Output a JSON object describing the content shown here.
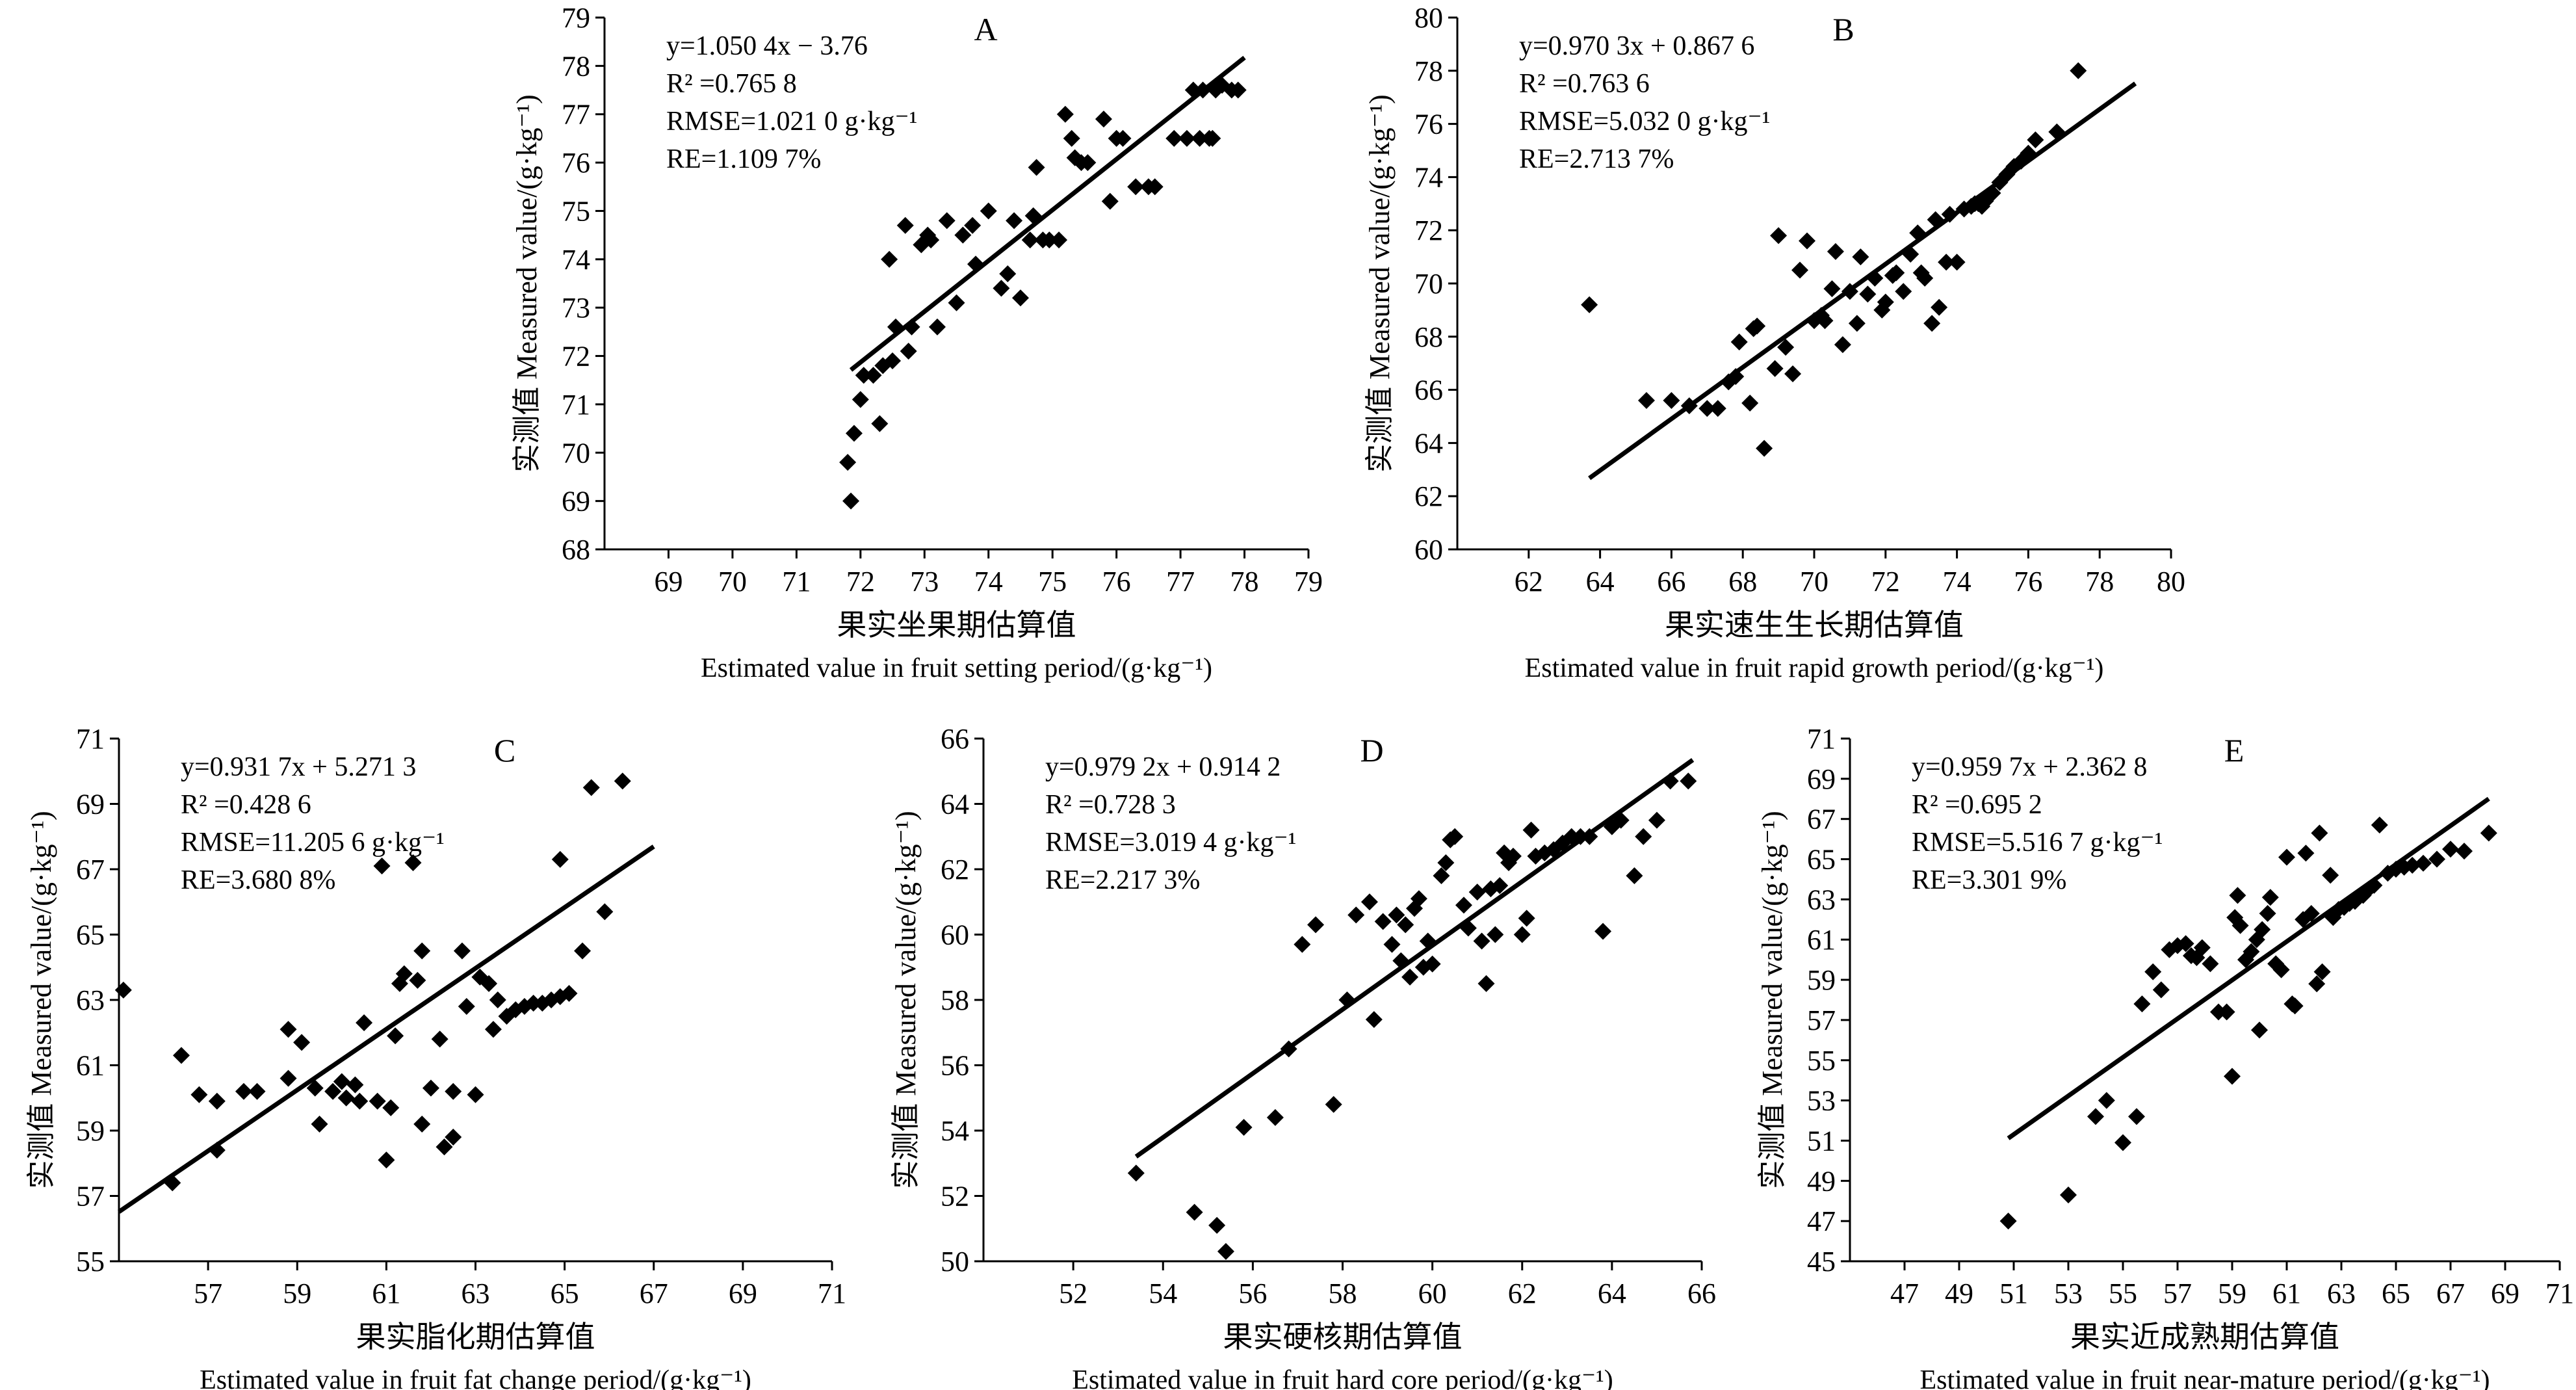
{
  "figure": {
    "panels": [
      "A",
      "B",
      "C",
      "D",
      "E"
    ]
  },
  "chart_data": [
    {
      "type": "scatter",
      "letter": "A",
      "xlabel_cn": "果实坐果期估算值",
      "xlabel_en": "Estimated value in fruit setting period/(g·kg⁻¹)",
      "ylabel": "实测值 Measured value/(g·kg⁻¹)",
      "xlim": [
        68,
        79
      ],
      "ylim": [
        68,
        79
      ],
      "xticks": [
        "69",
        "70",
        "71",
        "72",
        "73",
        "74",
        "75",
        "76",
        "77",
        "78",
        "79"
      ],
      "yticks": [
        "68",
        "69",
        "70",
        "71",
        "72",
        "73",
        "74",
        "75",
        "76",
        "77",
        "78",
        "79"
      ],
      "equation": "y=1.050 4x − 3.76",
      "r2": "R² =0.765 8",
      "rmse": "RMSE=1.021 0 g·kg⁻¹",
      "re": "RE=1.109 7%",
      "fit": {
        "slope": 1.0504,
        "intercept": -3.76,
        "x": [
          71.85,
          78.0
        ]
      },
      "points": [
        [
          71.8,
          69.8
        ],
        [
          71.85,
          69.0
        ],
        [
          71.9,
          70.4
        ],
        [
          72.0,
          71.1
        ],
        [
          72.05,
          71.6
        ],
        [
          72.2,
          71.6
        ],
        [
          72.35,
          71.8
        ],
        [
          72.5,
          71.9
        ],
        [
          72.3,
          70.6
        ],
        [
          72.45,
          74.0
        ],
        [
          72.55,
          72.6
        ],
        [
          72.7,
          74.7
        ],
        [
          72.8,
          72.6
        ],
        [
          72.75,
          72.1
        ],
        [
          72.95,
          74.3
        ],
        [
          73.05,
          74.5
        ],
        [
          73.1,
          74.4
        ],
        [
          73.2,
          72.6
        ],
        [
          73.35,
          74.8
        ],
        [
          73.5,
          73.1
        ],
        [
          73.6,
          74.5
        ],
        [
          73.75,
          74.7
        ],
        [
          73.8,
          73.9
        ],
        [
          74.0,
          75.0
        ],
        [
          74.2,
          73.4
        ],
        [
          74.3,
          73.7
        ],
        [
          74.4,
          74.8
        ],
        [
          74.5,
          73.2
        ],
        [
          74.65,
          74.4
        ],
        [
          74.7,
          74.9
        ],
        [
          74.75,
          75.9
        ],
        [
          74.85,
          74.4
        ],
        [
          74.95,
          74.4
        ],
        [
          75.1,
          74.4
        ],
        [
          75.2,
          77.0
        ],
        [
          75.3,
          76.5
        ],
        [
          75.35,
          76.1
        ],
        [
          75.45,
          76.0
        ],
        [
          75.55,
          76.0
        ],
        [
          75.8,
          76.9
        ],
        [
          75.9,
          75.2
        ],
        [
          76.0,
          76.5
        ],
        [
          76.1,
          76.5
        ],
        [
          76.3,
          75.5
        ],
        [
          76.5,
          75.5
        ],
        [
          76.6,
          75.5
        ],
        [
          76.9,
          76.5
        ],
        [
          77.1,
          76.5
        ],
        [
          77.2,
          77.5
        ],
        [
          77.3,
          76.5
        ],
        [
          77.45,
          76.5
        ],
        [
          77.55,
          77.5
        ],
        [
          77.65,
          77.6
        ],
        [
          77.8,
          77.5
        ],
        [
          77.9,
          77.5
        ],
        [
          77.35,
          77.5
        ],
        [
          77.5,
          76.5
        ]
      ]
    },
    {
      "type": "scatter",
      "letter": "B",
      "xlabel_cn": "果实速生生长期估算值",
      "xlabel_en": "Estimated value in fruit rapid growth period/(g·kg⁻¹)",
      "ylabel": "实测值 Measured value/(g·kg⁻¹)",
      "xlim": [
        60,
        80
      ],
      "ylim": [
        60,
        80
      ],
      "xticks": [
        "62",
        "64",
        "66",
        "68",
        "70",
        "72",
        "74",
        "76",
        "78",
        "80"
      ],
      "yticks": [
        "60",
        "62",
        "64",
        "66",
        "68",
        "70",
        "72",
        "74",
        "76",
        "78",
        "80"
      ],
      "equation": "y=0.970 3x + 0.867 6",
      "r2": "R² =0.763 6",
      "rmse": "RMSE=5.032 0 g·kg⁻¹",
      "re": "RE=2.713 7%",
      "fit": {
        "slope": 0.9703,
        "intercept": 0.8676,
        "x": [
          63.7,
          79.0
        ]
      },
      "points": [
        [
          63.7,
          69.2
        ],
        [
          65.3,
          65.6
        ],
        [
          66.0,
          65.6
        ],
        [
          66.5,
          65.4
        ],
        [
          67.0,
          65.3
        ],
        [
          67.3,
          65.3
        ],
        [
          67.6,
          66.3
        ],
        [
          67.8,
          66.5
        ],
        [
          67.9,
          67.8
        ],
        [
          68.2,
          65.5
        ],
        [
          68.3,
          68.3
        ],
        [
          68.4,
          68.4
        ],
        [
          68.6,
          63.8
        ],
        [
          68.9,
          66.8
        ],
        [
          69.0,
          71.8
        ],
        [
          69.2,
          67.6
        ],
        [
          69.4,
          66.6
        ],
        [
          69.6,
          70.5
        ],
        [
          69.8,
          71.6
        ],
        [
          70.0,
          68.6
        ],
        [
          70.2,
          68.8
        ],
        [
          70.3,
          68.6
        ],
        [
          70.5,
          69.8
        ],
        [
          70.6,
          71.2
        ],
        [
          70.8,
          67.7
        ],
        [
          71.0,
          69.7
        ],
        [
          71.2,
          68.5
        ],
        [
          71.3,
          71.0
        ],
        [
          71.5,
          69.6
        ],
        [
          71.7,
          70.2
        ],
        [
          71.9,
          69.0
        ],
        [
          72.0,
          69.3
        ],
        [
          72.2,
          70.3
        ],
        [
          72.3,
          70.4
        ],
        [
          72.5,
          69.7
        ],
        [
          72.7,
          71.1
        ],
        [
          72.9,
          71.9
        ],
        [
          73.0,
          70.4
        ],
        [
          73.1,
          70.2
        ],
        [
          73.3,
          68.5
        ],
        [
          73.4,
          72.4
        ],
        [
          73.5,
          69.1
        ],
        [
          73.7,
          70.8
        ],
        [
          73.8,
          72.6
        ],
        [
          74.0,
          70.8
        ],
        [
          74.2,
          72.8
        ],
        [
          74.4,
          72.9
        ],
        [
          74.5,
          73.0
        ],
        [
          74.6,
          73.0
        ],
        [
          74.7,
          72.9
        ],
        [
          74.8,
          73.1
        ],
        [
          75.0,
          73.4
        ],
        [
          75.2,
          73.8
        ],
        [
          75.4,
          74.1
        ],
        [
          75.6,
          74.4
        ],
        [
          75.8,
          74.6
        ],
        [
          76.0,
          74.9
        ],
        [
          76.2,
          75.4
        ],
        [
          76.8,
          75.7
        ],
        [
          77.4,
          78.0
        ]
      ]
    },
    {
      "type": "scatter",
      "letter": "C",
      "xlabel_cn": "果实脂化期估算值",
      "xlabel_en": "Estimated value in fruit fat change period/(g·kg⁻¹)",
      "ylabel": "实测值 Measured value/(g·kg⁻¹)",
      "xlim": [
        55,
        71
      ],
      "ylim": [
        55,
        71
      ],
      "xticks": [
        "57",
        "59",
        "61",
        "63",
        "65",
        "67",
        "69",
        "71"
      ],
      "yticks": [
        "55",
        "57",
        "59",
        "61",
        "63",
        "65",
        "67",
        "69",
        "71"
      ],
      "equation": "y=0.931 7x + 5.271 3",
      "r2": "R² =0.428 6",
      "rmse": "RMSE=11.205 6 g·kg⁻¹",
      "re": "RE=3.680 8%",
      "fit": {
        "slope": 0.9317,
        "intercept": 5.2713,
        "x": [
          55.0,
          67.0
        ]
      },
      "points": [
        [
          55.1,
          63.3
        ],
        [
          56.2,
          57.4
        ],
        [
          56.4,
          61.3
        ],
        [
          56.8,
          60.1
        ],
        [
          57.2,
          59.9
        ],
        [
          57.2,
          58.4
        ],
        [
          57.8,
          60.2
        ],
        [
          58.1,
          60.2
        ],
        [
          58.8,
          62.1
        ],
        [
          58.8,
          60.6
        ],
        [
          59.1,
          61.7
        ],
        [
          59.4,
          60.3
        ],
        [
          59.5,
          59.2
        ],
        [
          59.8,
          60.2
        ],
        [
          60.0,
          60.5
        ],
        [
          60.1,
          60.0
        ],
        [
          60.3,
          60.4
        ],
        [
          60.4,
          59.9
        ],
        [
          60.5,
          62.3
        ],
        [
          60.8,
          59.9
        ],
        [
          60.9,
          67.1
        ],
        [
          61.0,
          58.1
        ],
        [
          61.1,
          59.7
        ],
        [
          61.2,
          61.9
        ],
        [
          61.3,
          63.5
        ],
        [
          61.4,
          63.8
        ],
        [
          61.6,
          67.2
        ],
        [
          61.7,
          63.6
        ],
        [
          61.8,
          64.5
        ],
        [
          61.8,
          59.2
        ],
        [
          62.0,
          60.3
        ],
        [
          62.2,
          61.8
        ],
        [
          62.3,
          58.5
        ],
        [
          62.5,
          58.8
        ],
        [
          62.5,
          60.2
        ],
        [
          62.7,
          64.5
        ],
        [
          62.8,
          62.8
        ],
        [
          63.0,
          60.1
        ],
        [
          63.1,
          63.7
        ],
        [
          63.3,
          63.5
        ],
        [
          63.4,
          62.1
        ],
        [
          63.5,
          63.0
        ],
        [
          63.7,
          62.5
        ],
        [
          63.9,
          62.7
        ],
        [
          64.1,
          62.8
        ],
        [
          64.3,
          62.9
        ],
        [
          64.5,
          62.9
        ],
        [
          64.7,
          63.0
        ],
        [
          64.9,
          63.1
        ],
        [
          65.1,
          63.2
        ],
        [
          65.4,
          64.5
        ],
        [
          64.9,
          67.3
        ],
        [
          65.6,
          69.5
        ],
        [
          65.9,
          65.7
        ],
        [
          66.3,
          69.7
        ]
      ]
    },
    {
      "type": "scatter",
      "letter": "D",
      "xlabel_cn": "果实硬核期估算值",
      "xlabel_en": "Estimated value in fruit hard core period/(g·kg⁻¹)",
      "ylabel": "实测值 Measured value/(g·kg⁻¹)",
      "xlim": [
        50,
        66
      ],
      "ylim": [
        50,
        66
      ],
      "xticks": [
        "52",
        "54",
        "56",
        "58",
        "60",
        "62",
        "64",
        "66"
      ],
      "yticks": [
        "50",
        "52",
        "54",
        "56",
        "58",
        "60",
        "62",
        "64",
        "66"
      ],
      "equation": "y=0.979 2x + 0.914 2",
      "r2": "R² =0.728 3",
      "rmse": "RMSE=3.019 4 g·kg⁻¹",
      "re": "RE=2.217 3%",
      "fit": {
        "slope": 0.9792,
        "intercept": 0.9142,
        "x": [
          53.4,
          65.8
        ]
      },
      "points": [
        [
          53.4,
          52.7
        ],
        [
          54.7,
          51.5
        ],
        [
          55.2,
          51.1
        ],
        [
          55.4,
          50.3
        ],
        [
          55.8,
          54.1
        ],
        [
          56.5,
          54.4
        ],
        [
          56.8,
          56.5
        ],
        [
          57.1,
          59.7
        ],
        [
          57.4,
          60.3
        ],
        [
          57.8,
          54.8
        ],
        [
          58.1,
          58.0
        ],
        [
          58.3,
          60.6
        ],
        [
          58.6,
          61.0
        ],
        [
          58.7,
          57.4
        ],
        [
          58.9,
          60.4
        ],
        [
          59.1,
          59.7
        ],
        [
          59.2,
          60.6
        ],
        [
          59.3,
          59.2
        ],
        [
          59.4,
          60.3
        ],
        [
          59.5,
          58.7
        ],
        [
          59.6,
          60.8
        ],
        [
          59.7,
          61.1
        ],
        [
          59.8,
          59.0
        ],
        [
          59.9,
          59.8
        ],
        [
          60.0,
          59.1
        ],
        [
          60.2,
          61.8
        ],
        [
          60.3,
          62.2
        ],
        [
          60.4,
          62.9
        ],
        [
          60.5,
          63.0
        ],
        [
          60.7,
          60.9
        ],
        [
          60.8,
          60.2
        ],
        [
          61.0,
          61.3
        ],
        [
          61.1,
          59.8
        ],
        [
          61.2,
          58.5
        ],
        [
          61.3,
          61.4
        ],
        [
          61.4,
          60.0
        ],
        [
          61.5,
          61.5
        ],
        [
          61.6,
          62.5
        ],
        [
          61.7,
          62.2
        ],
        [
          61.8,
          62.4
        ],
        [
          62.0,
          60.0
        ],
        [
          62.1,
          60.5
        ],
        [
          62.2,
          63.2
        ],
        [
          62.3,
          62.4
        ],
        [
          62.5,
          62.5
        ],
        [
          62.7,
          62.6
        ],
        [
          62.9,
          62.8
        ],
        [
          63.1,
          63.0
        ],
        [
          63.3,
          63.0
        ],
        [
          63.5,
          63.0
        ],
        [
          63.8,
          60.1
        ],
        [
          64.0,
          63.3
        ],
        [
          64.2,
          63.5
        ],
        [
          64.5,
          61.8
        ],
        [
          64.7,
          63.0
        ],
        [
          65.0,
          63.5
        ],
        [
          65.3,
          64.7
        ],
        [
          65.7,
          64.7
        ]
      ]
    },
    {
      "type": "scatter",
      "letter": "E",
      "xlabel_cn": "果实近成熟期估算值",
      "xlabel_en": "Estimated value in fruit near-mature period/(g·kg⁻¹)",
      "ylabel": "实测值 Measured value/(g·kg⁻¹)",
      "xlim": [
        45,
        71
      ],
      "ylim": [
        45,
        71
      ],
      "xticks": [
        "47",
        "49",
        "51",
        "53",
        "55",
        "57",
        "59",
        "61",
        "63",
        "65",
        "67",
        "69",
        "71"
      ],
      "yticks": [
        "45",
        "47",
        "49",
        "51",
        "53",
        "55",
        "57",
        "59",
        "61",
        "63",
        "65",
        "67",
        "69",
        "71"
      ],
      "equation": "y=0.959 7x + 2.362 8",
      "r2": "R² =0.695 2",
      "rmse": "RMSE=5.516 7 g·kg⁻¹",
      "re": "RE=3.301 9%",
      "fit": {
        "slope": 0.9597,
        "intercept": 2.3628,
        "x": [
          50.8,
          68.4
        ]
      },
      "points": [
        [
          50.8,
          47.0
        ],
        [
          53.0,
          48.3
        ],
        [
          54.0,
          52.2
        ],
        [
          54.4,
          53.0
        ],
        [
          55.0,
          50.9
        ],
        [
          55.5,
          52.2
        ],
        [
          55.7,
          57.8
        ],
        [
          56.1,
          59.4
        ],
        [
          56.4,
          58.5
        ],
        [
          56.7,
          60.5
        ],
        [
          57.0,
          60.7
        ],
        [
          57.3,
          60.8
        ],
        [
          57.5,
          60.2
        ],
        [
          57.7,
          60.1
        ],
        [
          57.9,
          60.6
        ],
        [
          58.2,
          59.8
        ],
        [
          58.5,
          57.4
        ],
        [
          58.8,
          57.4
        ],
        [
          59.0,
          54.2
        ],
        [
          59.1,
          62.1
        ],
        [
          59.2,
          63.2
        ],
        [
          59.3,
          61.7
        ],
        [
          59.5,
          60.0
        ],
        [
          59.7,
          60.4
        ],
        [
          59.9,
          61.0
        ],
        [
          60.0,
          56.5
        ],
        [
          60.1,
          61.5
        ],
        [
          60.3,
          62.3
        ],
        [
          60.4,
          63.1
        ],
        [
          60.6,
          59.8
        ],
        [
          60.8,
          59.5
        ],
        [
          61.0,
          65.1
        ],
        [
          61.2,
          57.8
        ],
        [
          61.3,
          57.7
        ],
        [
          61.6,
          62.0
        ],
        [
          61.7,
          65.3
        ],
        [
          61.9,
          62.3
        ],
        [
          62.1,
          58.8
        ],
        [
          62.2,
          66.3
        ],
        [
          62.3,
          59.4
        ],
        [
          62.6,
          64.2
        ],
        [
          62.7,
          62.1
        ],
        [
          62.9,
          62.5
        ],
        [
          63.1,
          62.6
        ],
        [
          63.3,
          62.8
        ],
        [
          63.5,
          62.9
        ],
        [
          63.8,
          63.2
        ],
        [
          64.0,
          63.5
        ],
        [
          64.2,
          63.7
        ],
        [
          64.4,
          66.7
        ],
        [
          64.7,
          64.3
        ],
        [
          65.0,
          64.5
        ],
        [
          65.3,
          64.6
        ],
        [
          65.6,
          64.7
        ],
        [
          66.0,
          64.8
        ],
        [
          66.5,
          65.0
        ],
        [
          67.0,
          65.5
        ],
        [
          67.5,
          65.4
        ],
        [
          68.4,
          66.3
        ]
      ]
    }
  ]
}
